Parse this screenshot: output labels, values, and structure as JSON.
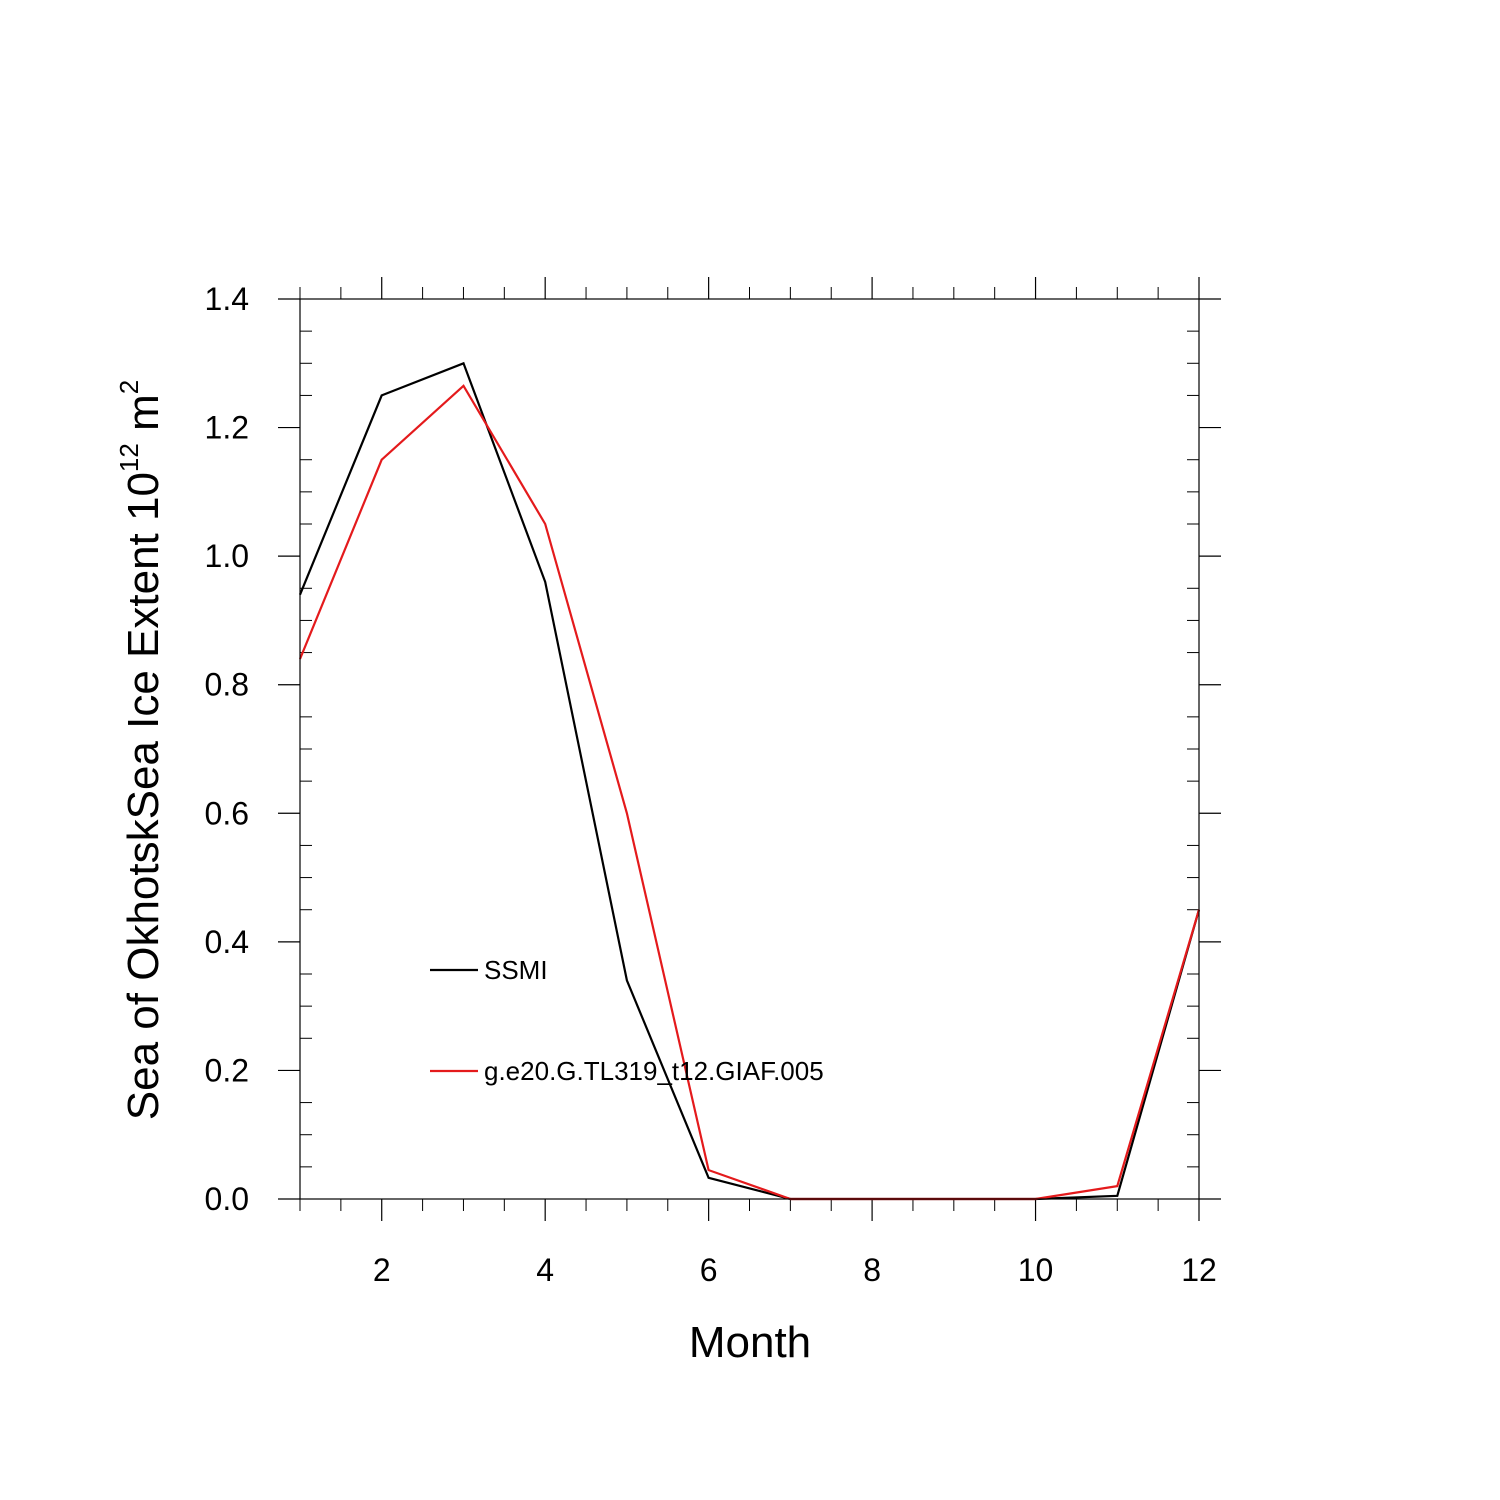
{
  "chart_data": {
    "type": "line",
    "title": "",
    "xlabel": "Month",
    "ylabel": "Sea of OkhotskSea Ice Extent 10",
    "ylabel_sup": "12",
    "ylabel_unit": "m",
    "ylabel_unit_sup": "2",
    "xlim": [
      1,
      12
    ],
    "ylim": [
      0,
      1.4
    ],
    "xticks": [
      2,
      4,
      6,
      8,
      10,
      12
    ],
    "xtick_labels": [
      "2",
      "4",
      "6",
      "8",
      "10",
      "12"
    ],
    "yticks": [
      0,
      0.2,
      0.4,
      0.6,
      0.8,
      1.0,
      1.2,
      1.4
    ],
    "ytick_labels": [
      "0.0",
      "0.2",
      "0.4",
      "0.6",
      "0.8",
      "1.0",
      "1.2",
      "1.4"
    ],
    "grid": false,
    "legend_position": "inside-lower-left",
    "x": [
      1,
      2,
      3,
      4,
      5,
      6,
      7,
      8,
      9,
      10,
      11,
      12
    ],
    "series": [
      {
        "name": "SSMI",
        "color": "#000000",
        "values": [
          0.94,
          1.25,
          1.3,
          0.96,
          0.34,
          0.033,
          0.0,
          0.0,
          0.0,
          0.0,
          0.005,
          0.45
        ]
      },
      {
        "name": "g.e20.G.TL319_t12.GIAF.005",
        "color": "#e41a1c",
        "values": [
          0.84,
          1.15,
          1.265,
          1.05,
          0.6,
          0.045,
          0.0,
          0.0,
          0.0,
          0.0,
          0.02,
          0.45
        ]
      }
    ]
  }
}
